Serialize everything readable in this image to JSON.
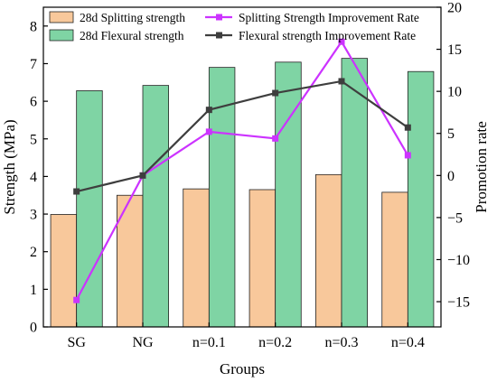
{
  "chart_data": {
    "type": "bar",
    "xlabel": "Groups",
    "ylabel": "Strength (MPa)",
    "y2label": "Promotion rate",
    "categories": [
      "SG",
      "NG",
      "n=0.1",
      "n=0.2",
      "n=0.3",
      "n=0.4"
    ],
    "ylim": [
      0,
      8.5
    ],
    "yticks": [
      0,
      1,
      2,
      3,
      4,
      5,
      6,
      7,
      8
    ],
    "y2lim": [
      -18,
      20
    ],
    "y2ticks": [
      -15,
      -10,
      -5,
      0,
      5,
      10,
      15,
      20
    ],
    "bar_series": [
      {
        "name": "28d Splitting strength",
        "values": [
          2.99,
          3.5,
          3.67,
          3.65,
          4.05,
          3.58
        ],
        "color": "#f8c89b"
      },
      {
        "name": "28d Flexural strength",
        "values": [
          6.28,
          6.42,
          6.9,
          7.04,
          7.14,
          6.79
        ],
        "color": "#7fd4a4"
      }
    ],
    "line_series": [
      {
        "name": "Splitting Strength Improvement Rate",
        "values": [
          -14.8,
          0,
          5.2,
          4.4,
          15.9,
          2.4
        ],
        "color": "#cc33ff",
        "axis": "right"
      },
      {
        "name": "Flexural strength Improvement Rate",
        "values": [
          -1.9,
          0,
          7.8,
          9.8,
          11.2,
          5.7
        ],
        "color": "#3e3e3e",
        "axis": "right"
      }
    ],
    "legend_placement": "top",
    "grid": false
  }
}
